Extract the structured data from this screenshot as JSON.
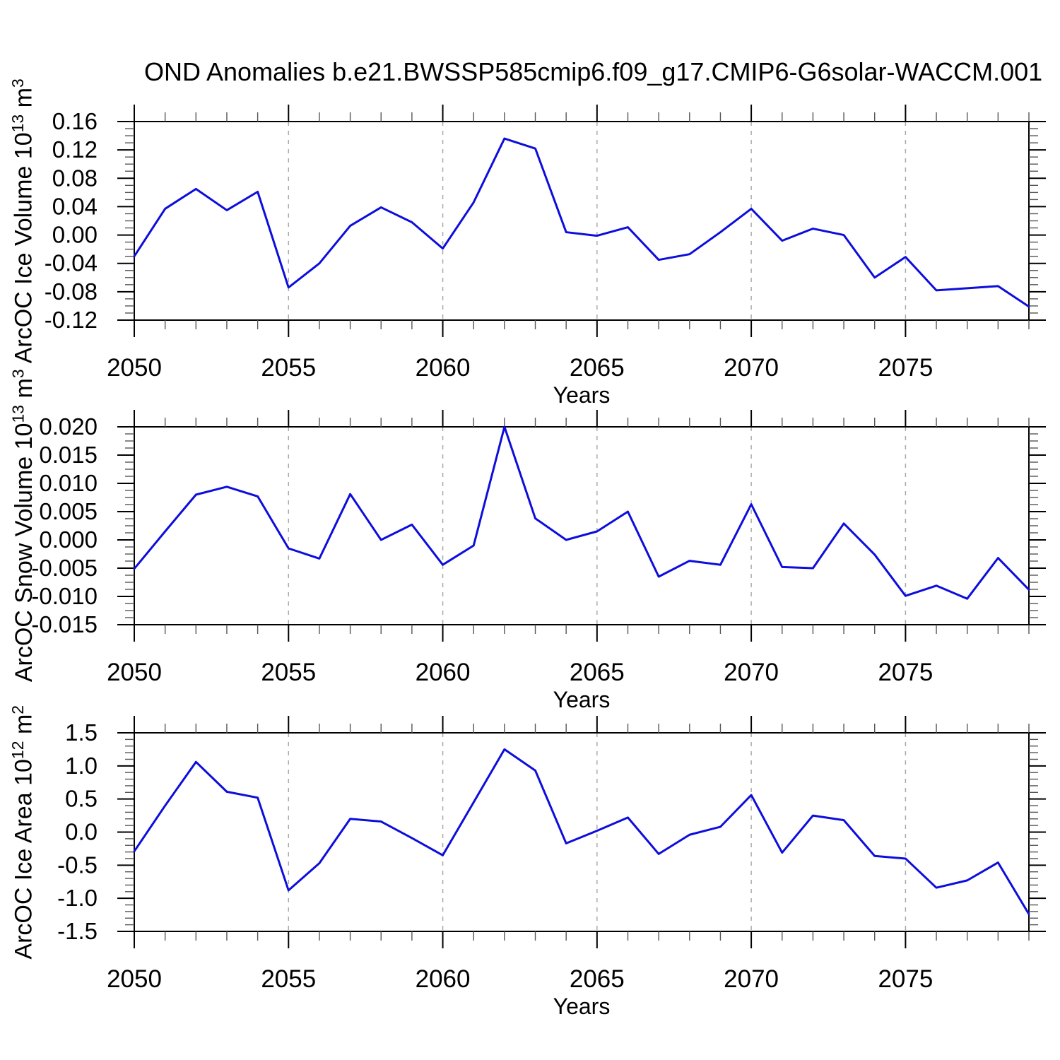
{
  "title": "OND Anomalies b.e21.BWSSP585cmip6.f09_g17.CMIP6-G6solar-WACCM.001",
  "years": [
    2050,
    2051,
    2052,
    2053,
    2054,
    2055,
    2056,
    2057,
    2058,
    2059,
    2060,
    2061,
    2062,
    2063,
    2064,
    2065,
    2066,
    2067,
    2068,
    2069,
    2070,
    2071,
    2072,
    2073,
    2074,
    2075,
    2076,
    2077,
    2078,
    2079
  ],
  "colors": {
    "line": "#0D0DDD",
    "grid": "#A9A9A9",
    "axis": "#000000",
    "minor_tick": "#555555",
    "background": "#FFFFFF",
    "text": "#000000"
  },
  "chart_data": [
    {
      "type": "line",
      "panel": "ice-volume",
      "ylabel": "ArcOC Ice Volume 10^13 m^3",
      "ylabel_prefix": "ArcOC Ice Volume 10",
      "ylabel_exp": "13",
      "ylabel_unit": " m",
      "ylabel_unit_exp": "3",
      "xlabel": "Years",
      "xlim": [
        2050,
        2079
      ],
      "ylim": [
        -0.12,
        0.16
      ],
      "y_major_step": 0.04,
      "y_minor_divs": 4,
      "x_major_step": 5,
      "x_major_ticks": [
        2050,
        2055,
        2060,
        2065,
        2070,
        2075
      ],
      "x_tick_labels": [
        "2050",
        "2055",
        "2060",
        "2065",
        "2070",
        "2075"
      ],
      "y_tick_labels": [
        "0.16",
        "0.12",
        "0.08",
        "0.04",
        "0.00",
        "-0.04",
        "-0.08",
        "-0.12"
      ],
      "grid_x": [
        2055,
        2060,
        2065,
        2070,
        2075
      ],
      "legend": "none",
      "grid": "vertical-dashed",
      "series": [
        {
          "name": "OND ArcOC ice volume anomaly",
          "values": [
            -0.03,
            0.037,
            0.065,
            0.035,
            0.061,
            -0.074,
            -0.04,
            0.013,
            0.039,
            0.018,
            -0.019,
            0.046,
            0.136,
            0.122,
            0.004,
            -0.001,
            0.011,
            -0.035,
            -0.027,
            0.004,
            0.037,
            -0.008,
            0.009,
            0.0,
            -0.06,
            -0.031,
            -0.078,
            -0.075,
            -0.072,
            -0.101
          ]
        }
      ]
    },
    {
      "type": "line",
      "panel": "snow-volume",
      "ylabel": "ArcOC Snow Volume 10^13 m^3",
      "ylabel_prefix": "ArcOC Snow Volume 10",
      "ylabel_exp": "13",
      "ylabel_unit": " m",
      "ylabel_unit_exp": "3",
      "xlabel": "Years",
      "xlim": [
        2050,
        2079
      ],
      "ylim": [
        -0.015,
        0.02
      ],
      "y_major_step": 0.005,
      "y_minor_divs": 4,
      "x_major_step": 5,
      "x_major_ticks": [
        2050,
        2055,
        2060,
        2065,
        2070,
        2075
      ],
      "x_tick_labels": [
        "2050",
        "2055",
        "2060",
        "2065",
        "2070",
        "2075"
      ],
      "y_tick_labels": [
        "0.020",
        "0.015",
        "0.010",
        "0.005",
        "0.000",
        "-0.005",
        "-0.010",
        "-0.015"
      ],
      "grid_x": [
        2055,
        2060,
        2065,
        2070,
        2075
      ],
      "legend": "none",
      "grid": "vertical-dashed",
      "series": [
        {
          "name": "OND ArcOC snow volume anomaly",
          "values": [
            -0.0051,
            0.0015,
            0.008,
            0.0094,
            0.0077,
            -0.0015,
            -0.0033,
            0.0081,
            0.0,
            0.0027,
            -0.0044,
            -0.001,
            0.02,
            0.0038,
            0.0,
            0.0015,
            0.005,
            -0.0065,
            -0.0037,
            -0.0044,
            0.0063,
            -0.0048,
            -0.005,
            0.0029,
            -0.0026,
            -0.0099,
            -0.0081,
            -0.0104,
            -0.0032,
            -0.0088
          ]
        }
      ]
    },
    {
      "type": "line",
      "panel": "ice-area",
      "ylabel": "ArcOC Ice Area 10^12 m^2",
      "ylabel_prefix": "ArcOC Ice Area 10",
      "ylabel_exp": "12",
      "ylabel_unit": " m",
      "ylabel_unit_exp": "2",
      "xlabel": "Years",
      "xlim": [
        2050,
        2079
      ],
      "ylim": [
        -1.5,
        1.5
      ],
      "y_major_step": 0.5,
      "y_minor_divs": 5,
      "x_major_step": 5,
      "x_major_ticks": [
        2050,
        2055,
        2060,
        2065,
        2070,
        2075
      ],
      "x_tick_labels": [
        "2050",
        "2055",
        "2060",
        "2065",
        "2070",
        "2075"
      ],
      "y_tick_labels": [
        "1.5",
        "1.0",
        "0.5",
        "0.0",
        "-0.5",
        "-1.0",
        "-1.5"
      ],
      "grid_x": [
        2055,
        2060,
        2065,
        2070,
        2075
      ],
      "legend": "none",
      "grid": "vertical-dashed",
      "series": [
        {
          "name": "OND ArcOC ice area anomaly",
          "values": [
            -0.29,
            0.4,
            1.06,
            0.61,
            0.52,
            -0.88,
            -0.47,
            0.2,
            0.16,
            -0.09,
            -0.35,
            0.45,
            1.25,
            0.93,
            -0.17,
            0.02,
            0.22,
            -0.33,
            -0.04,
            0.08,
            0.56,
            -0.31,
            0.25,
            0.18,
            -0.36,
            -0.4,
            -0.84,
            -0.73,
            -0.46,
            -1.24
          ]
        }
      ]
    }
  ]
}
